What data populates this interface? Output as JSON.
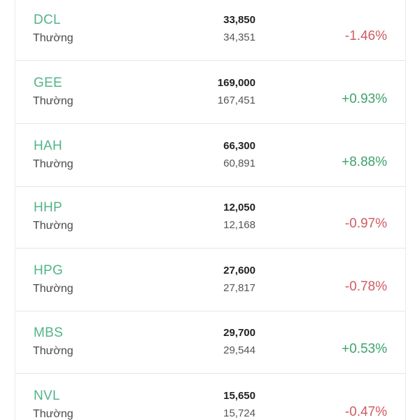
{
  "stocks": [
    {
      "symbol": "DCL",
      "type": "Thường",
      "price": "33,850",
      "reference": "34,351",
      "change": "-1.46%"
    },
    {
      "symbol": "GEE",
      "type": "Thường",
      "price": "169,000",
      "reference": "167,451",
      "change": "+0.93%"
    },
    {
      "symbol": "HAH",
      "type": "Thường",
      "price": "66,300",
      "reference": "60,891",
      "change": "+8.88%"
    },
    {
      "symbol": "HHP",
      "type": "Thường",
      "price": "12,050",
      "reference": "12,168",
      "change": "-0.97%"
    },
    {
      "symbol": "HPG",
      "type": "Thường",
      "price": "27,600",
      "reference": "27,817",
      "change": "-0.78%"
    },
    {
      "symbol": "MBS",
      "type": "Thường",
      "price": "29,700",
      "reference": "29,544",
      "change": "+0.53%"
    },
    {
      "symbol": "NVL",
      "type": "Thường",
      "price": "15,650",
      "reference": "15,724",
      "change": "-0.47%"
    }
  ],
  "colors": {
    "symbol": "#52b38a",
    "positive": "#3ea26c",
    "negative": "#d05b62"
  }
}
